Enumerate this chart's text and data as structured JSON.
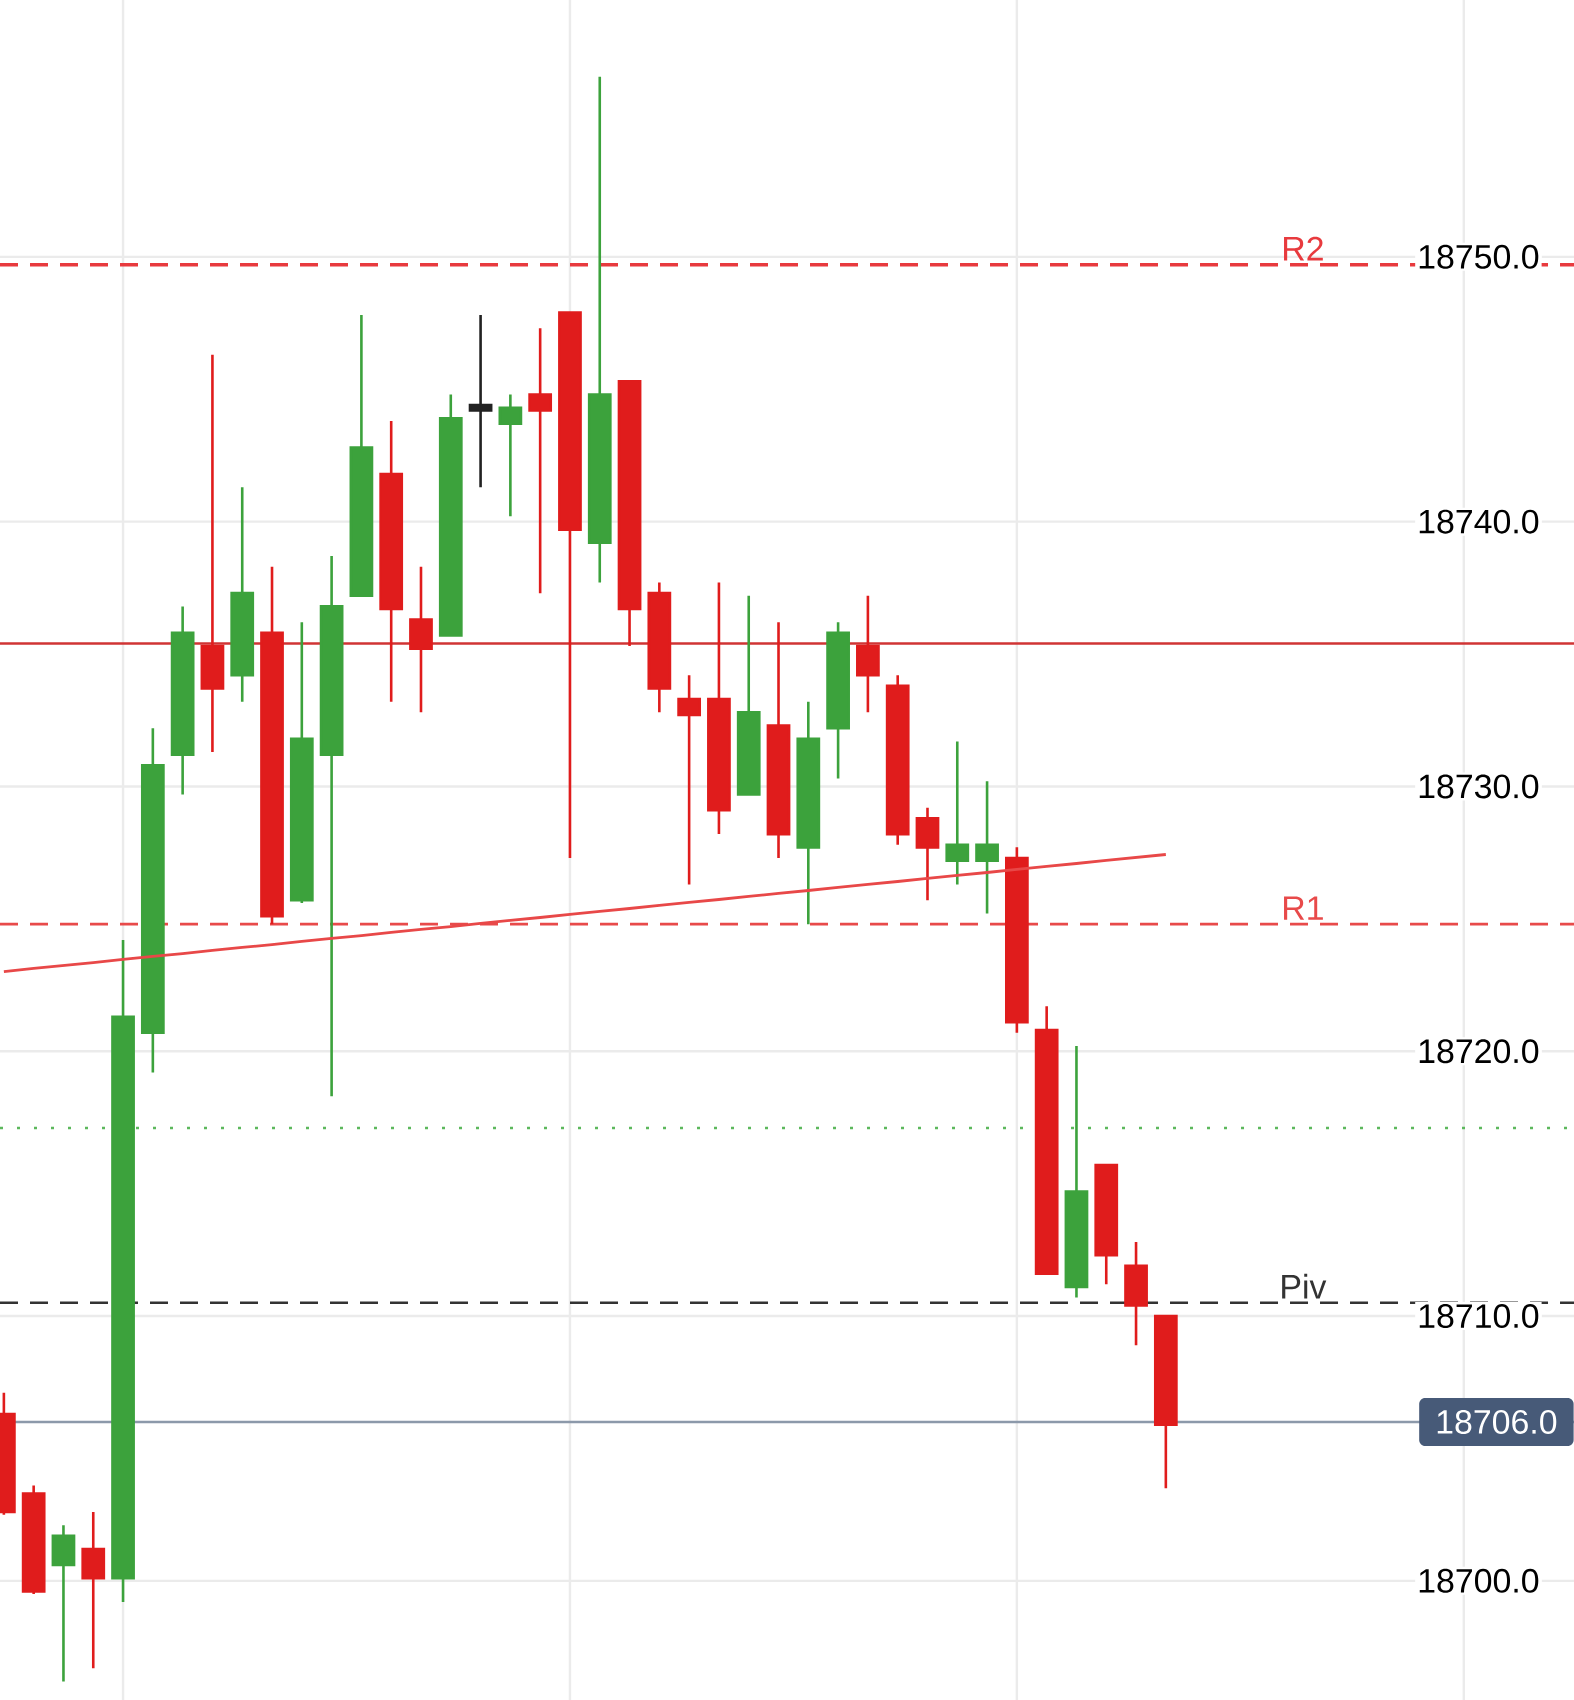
{
  "chart_data": {
    "type": "candlestick",
    "categories": [
      null,
      null,
      null,
      null,
      null,
      null,
      null,
      null,
      null,
      null,
      null,
      null,
      null,
      null,
      null,
      null,
      null,
      null,
      null,
      null,
      null,
      null,
      null,
      null,
      null,
      null,
      null,
      null,
      null,
      null,
      null,
      null,
      null,
      null,
      null,
      null,
      null,
      null,
      null,
      null
    ],
    "ohlc": [
      [
        18706.3,
        18707.1,
        18702.5,
        18702.6
      ],
      [
        18703.3,
        18703.6,
        18699.5,
        18699.6
      ],
      [
        18700.6,
        18702.1,
        18696.2,
        18701.7
      ],
      [
        18701.2,
        18702.6,
        18696.7,
        18700.1
      ],
      [
        18700.1,
        18724.2,
        18699.2,
        18721.3
      ],
      [
        18720.7,
        18732.2,
        18719.2,
        18730.8
      ],
      [
        18731.2,
        18736.8,
        18729.7,
        18735.8
      ],
      [
        18735.3,
        18746.3,
        18731.3,
        18733.7
      ],
      [
        18734.2,
        18741.3,
        18733.2,
        18737.3
      ],
      [
        18735.8,
        18738.3,
        18724.8,
        18725.1
      ],
      [
        18725.7,
        18736.2,
        18725.6,
        18731.8
      ],
      [
        18731.2,
        18738.7,
        18718.3,
        18736.8
      ],
      [
        18737.2,
        18747.8,
        18737.2,
        18742.8
      ],
      [
        18741.8,
        18743.8,
        18733.2,
        18736.7
      ],
      [
        18736.3,
        18738.3,
        18732.8,
        18735.2
      ],
      [
        18735.7,
        18744.8,
        18735.7,
        18743.9
      ],
      [
        18744.4,
        18747.8,
        18741.3,
        18744.2
      ],
      [
        18743.7,
        18744.8,
        18740.2,
        18744.3
      ],
      [
        18744.8,
        18747.3,
        18737.3,
        18744.2
      ],
      [
        18747.9,
        18747.9,
        18727.3,
        18739.7
      ],
      [
        18739.2,
        18756.8,
        18737.7,
        18744.8
      ],
      [
        18745.3,
        18745.3,
        18735.3,
        18736.7
      ],
      [
        18737.3,
        18737.7,
        18732.8,
        18733.7
      ],
      [
        18733.3,
        18734.2,
        18726.3,
        18732.7
      ],
      [
        18733.3,
        18737.7,
        18728.2,
        18729.1
      ],
      [
        18729.7,
        18737.2,
        18729.7,
        18732.8
      ],
      [
        18732.3,
        18736.2,
        18727.3,
        18728.2
      ],
      [
        18727.7,
        18733.2,
        18724.8,
        18731.8
      ],
      [
        18732.2,
        18736.2,
        18730.3,
        18735.8
      ],
      [
        18735.3,
        18737.2,
        18732.8,
        18734.2
      ],
      [
        18733.8,
        18734.2,
        18727.8,
        18728.2
      ],
      [
        18728.8,
        18729.2,
        18725.7,
        18727.7
      ],
      [
        18727.2,
        18731.7,
        18726.3,
        18727.8
      ],
      [
        18727.2,
        18730.2,
        18725.2,
        18727.8
      ],
      [
        18727.3,
        18727.7,
        18720.7,
        18721.1
      ],
      [
        18720.8,
        18721.7,
        18711.6,
        18711.6
      ],
      [
        18711.1,
        18720.2,
        18710.7,
        18714.7
      ],
      [
        18715.7,
        18715.7,
        18711.2,
        18712.3
      ],
      [
        18711.9,
        18712.8,
        18708.9,
        18710.4
      ],
      [
        18710.0,
        18710.0,
        18703.5,
        18705.9
      ]
    ],
    "colors": [
      "#e01c1c",
      "#e01c1c",
      "#3ca23c",
      "#e01c1c",
      "#3ca23c",
      "#3ca23c",
      "#3ca23c",
      "#e01c1c",
      "#3ca23c",
      "#e01c1c",
      "#3ca23c",
      "#3ca23c",
      "#3ca23c",
      "#e01c1c",
      "#e01c1c",
      "#3ca23c",
      "#222222",
      "#3ca23c",
      "#e01c1c",
      "#e01c1c",
      "#3ca23c",
      "#e01c1c",
      "#e01c1c",
      "#e01c1c",
      "#e01c1c",
      "#3ca23c",
      "#e01c1c",
      "#3ca23c",
      "#3ca23c",
      "#e01c1c",
      "#e01c1c",
      "#e01c1c",
      "#3ca23c",
      "#3ca23c",
      "#e01c1c",
      "#e01c1c",
      "#3ca23c",
      "#e01c1c",
      "#e01c1c",
      "#e01c1c"
    ],
    "series": [
      {
        "type": "line",
        "color": "#e84848",
        "values": [
          18723.01,
          18723.13,
          18723.24,
          18723.35,
          18723.47,
          18723.58,
          18723.69,
          18723.81,
          18723.92,
          18724.03,
          18724.15,
          18724.26,
          18724.37,
          18724.49,
          18724.6,
          18724.71,
          18724.83,
          18724.94,
          18725.05,
          18725.17,
          18725.28,
          18725.39,
          18725.51,
          18725.62,
          18725.73,
          18725.85,
          18725.96,
          18726.07,
          18726.19,
          18726.3,
          18726.41,
          18726.53,
          18726.64,
          18726.75,
          18726.87,
          18726.98,
          18727.09,
          18727.21,
          18727.32,
          18727.43
        ]
      }
    ],
    "ylim": [
      18695.5,
      18759.7
    ],
    "yticks": [
      {
        "value": 18700,
        "label": "18700.0"
      },
      {
        "value": 18710,
        "label": "18710.0"
      },
      {
        "value": 18720,
        "label": "18720.0"
      },
      {
        "value": 18730,
        "label": "18730.0"
      },
      {
        "value": 18740,
        "label": "18740.0"
      },
      {
        "value": 18750,
        "label": "18750.0"
      }
    ],
    "ref_lines": [
      {
        "axis": "y",
        "value": 18749.7,
        "label": "R2",
        "color": "#e83a3e",
        "line_style": "dashed"
      },
      {
        "axis": "y",
        "value": 18735.4,
        "color": "#d03434",
        "line_style": "solid"
      },
      {
        "axis": "y",
        "value": 18724.8,
        "label": "R1",
        "color": "#e84a4a",
        "line_style": "dashed"
      },
      {
        "axis": "y",
        "value": 18717.1,
        "color": "#5cb85c",
        "line_style": "dotted"
      },
      {
        "axis": "y",
        "value": 18710.5,
        "label": "Piv",
        "color": "#333333",
        "line_style": "dashed"
      },
      {
        "axis": "y",
        "value": 18706.0,
        "label": "18706.0",
        "color": "#8c99aa",
        "line_style": "solid"
      }
    ],
    "grid": true,
    "tick_labels": "y"
  }
}
